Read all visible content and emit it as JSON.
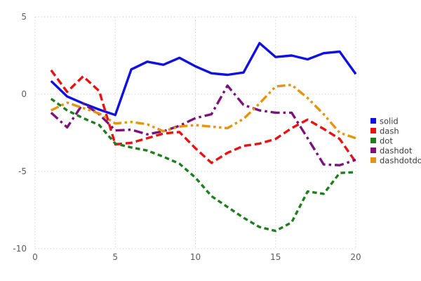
{
  "chart_data": {
    "type": "line",
    "title": "",
    "xlabel": "",
    "ylabel": "",
    "xlim": [
      0,
      20
    ],
    "ylim": [
      -10,
      5
    ],
    "x_ticks": [
      0,
      5,
      10,
      15,
      20
    ],
    "y_ticks": [
      5,
      0,
      -5,
      -10
    ],
    "grid": "dotted",
    "legend_position": "right",
    "x": [
      1,
      2,
      3,
      4,
      5,
      6,
      7,
      8,
      9,
      10,
      11,
      12,
      13,
      14,
      15,
      16,
      17,
      18,
      19,
      20
    ],
    "series": [
      {
        "name": "solid",
        "line_style": "solid",
        "color": "#1010e0",
        "values": [
          0.85,
          -0.15,
          -0.6,
          -1.0,
          -1.35,
          1.6,
          2.1,
          1.9,
          2.35,
          1.8,
          1.35,
          1.25,
          1.4,
          3.3,
          2.4,
          2.5,
          2.25,
          2.65,
          2.75,
          1.3
        ]
      },
      {
        "name": "dash",
        "line_style": "dash",
        "color": "#e81212",
        "values": [
          1.55,
          0.15,
          1.15,
          0.2,
          -3.25,
          -3.15,
          -2.85,
          -2.55,
          -2.45,
          -3.5,
          -4.45,
          -3.8,
          -3.35,
          -3.2,
          -2.9,
          -2.2,
          -1.65,
          -2.25,
          -2.9,
          -4.4
        ]
      },
      {
        "name": "dot",
        "line_style": "dot",
        "color": "#207d20",
        "values": [
          -0.3,
          -1.05,
          -1.55,
          -2.0,
          -3.2,
          -3.45,
          -3.65,
          -4.05,
          -4.5,
          -5.4,
          -6.6,
          -7.3,
          -8.0,
          -8.6,
          -8.85,
          -8.3,
          -6.3,
          -6.45,
          -5.1,
          -5.05
        ]
      },
      {
        "name": "dashdot",
        "line_style": "dashdot",
        "color": "#7b127b",
        "values": [
          -1.2,
          -2.15,
          -0.6,
          -1.3,
          -2.35,
          -2.3,
          -2.6,
          -2.4,
          -2.05,
          -1.55,
          -1.3,
          0.55,
          -0.7,
          -1.05,
          -1.2,
          -1.2,
          -2.85,
          -4.55,
          -4.6,
          -4.25
        ]
      },
      {
        "name": "dashdotdot",
        "line_style": "dashdotdot",
        "color": "#e5940e",
        "values": [
          -1.05,
          -0.55,
          -0.9,
          -1.25,
          -1.9,
          -1.8,
          -1.95,
          -2.4,
          -2.1,
          -2.0,
          -2.1,
          -2.2,
          -1.6,
          -0.6,
          0.5,
          0.6,
          -0.25,
          -1.3,
          -2.5,
          -2.85
        ]
      }
    ]
  },
  "axes": {
    "x_tick_labels": [
      "0",
      "5",
      "10",
      "15",
      "20"
    ],
    "y_tick_labels": [
      "5",
      "0",
      "-5",
      "-10"
    ]
  },
  "legend": {
    "labels": [
      "solid",
      "dash",
      "dot",
      "dashdot",
      "dashdotdot"
    ]
  },
  "colors": {
    "background": "#ffffff",
    "gridline": "#d2d2dc",
    "tick_label": "#5c5c66",
    "legend_text": "#3c3c3c"
  }
}
